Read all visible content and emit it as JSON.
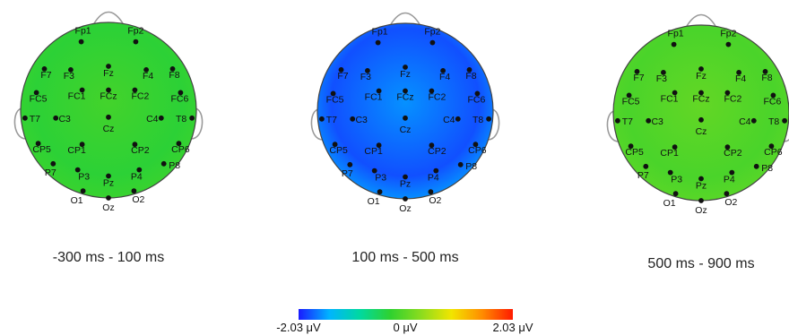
{
  "maps": [
    {
      "id": "map-1",
      "caption": "-300 ms - 100 ms",
      "level": 0.42
    },
    {
      "id": "map-2",
      "caption": "100 ms - 500 ms",
      "level": 0.05
    },
    {
      "id": "map-3",
      "caption": "500 ms - 900 ms",
      "level": 0.47
    }
  ],
  "electrodes": [
    "Fp1",
    "Fp2",
    "F7",
    "F3",
    "Fz",
    "F4",
    "F8",
    "FC5",
    "FC1",
    "FCz",
    "FC2",
    "FC6",
    "T7",
    "C3",
    "Cz",
    "C4",
    "T8",
    "CP5",
    "CP1",
    "CP2",
    "CP6",
    "P7",
    "P3",
    "Pz",
    "P4",
    "P8",
    "O1",
    "Oz",
    "O2"
  ],
  "colorbar": {
    "min_label": "-2.03 μV",
    "mid_label": "0 μV",
    "max_label": "2.03 μV",
    "colors": [
      "#1a1aff",
      "#00b4ff",
      "#00d9a0",
      "#2fd12f",
      "#8bdc1e",
      "#f2e500",
      "#ff8c00",
      "#ff1a00"
    ]
  }
}
